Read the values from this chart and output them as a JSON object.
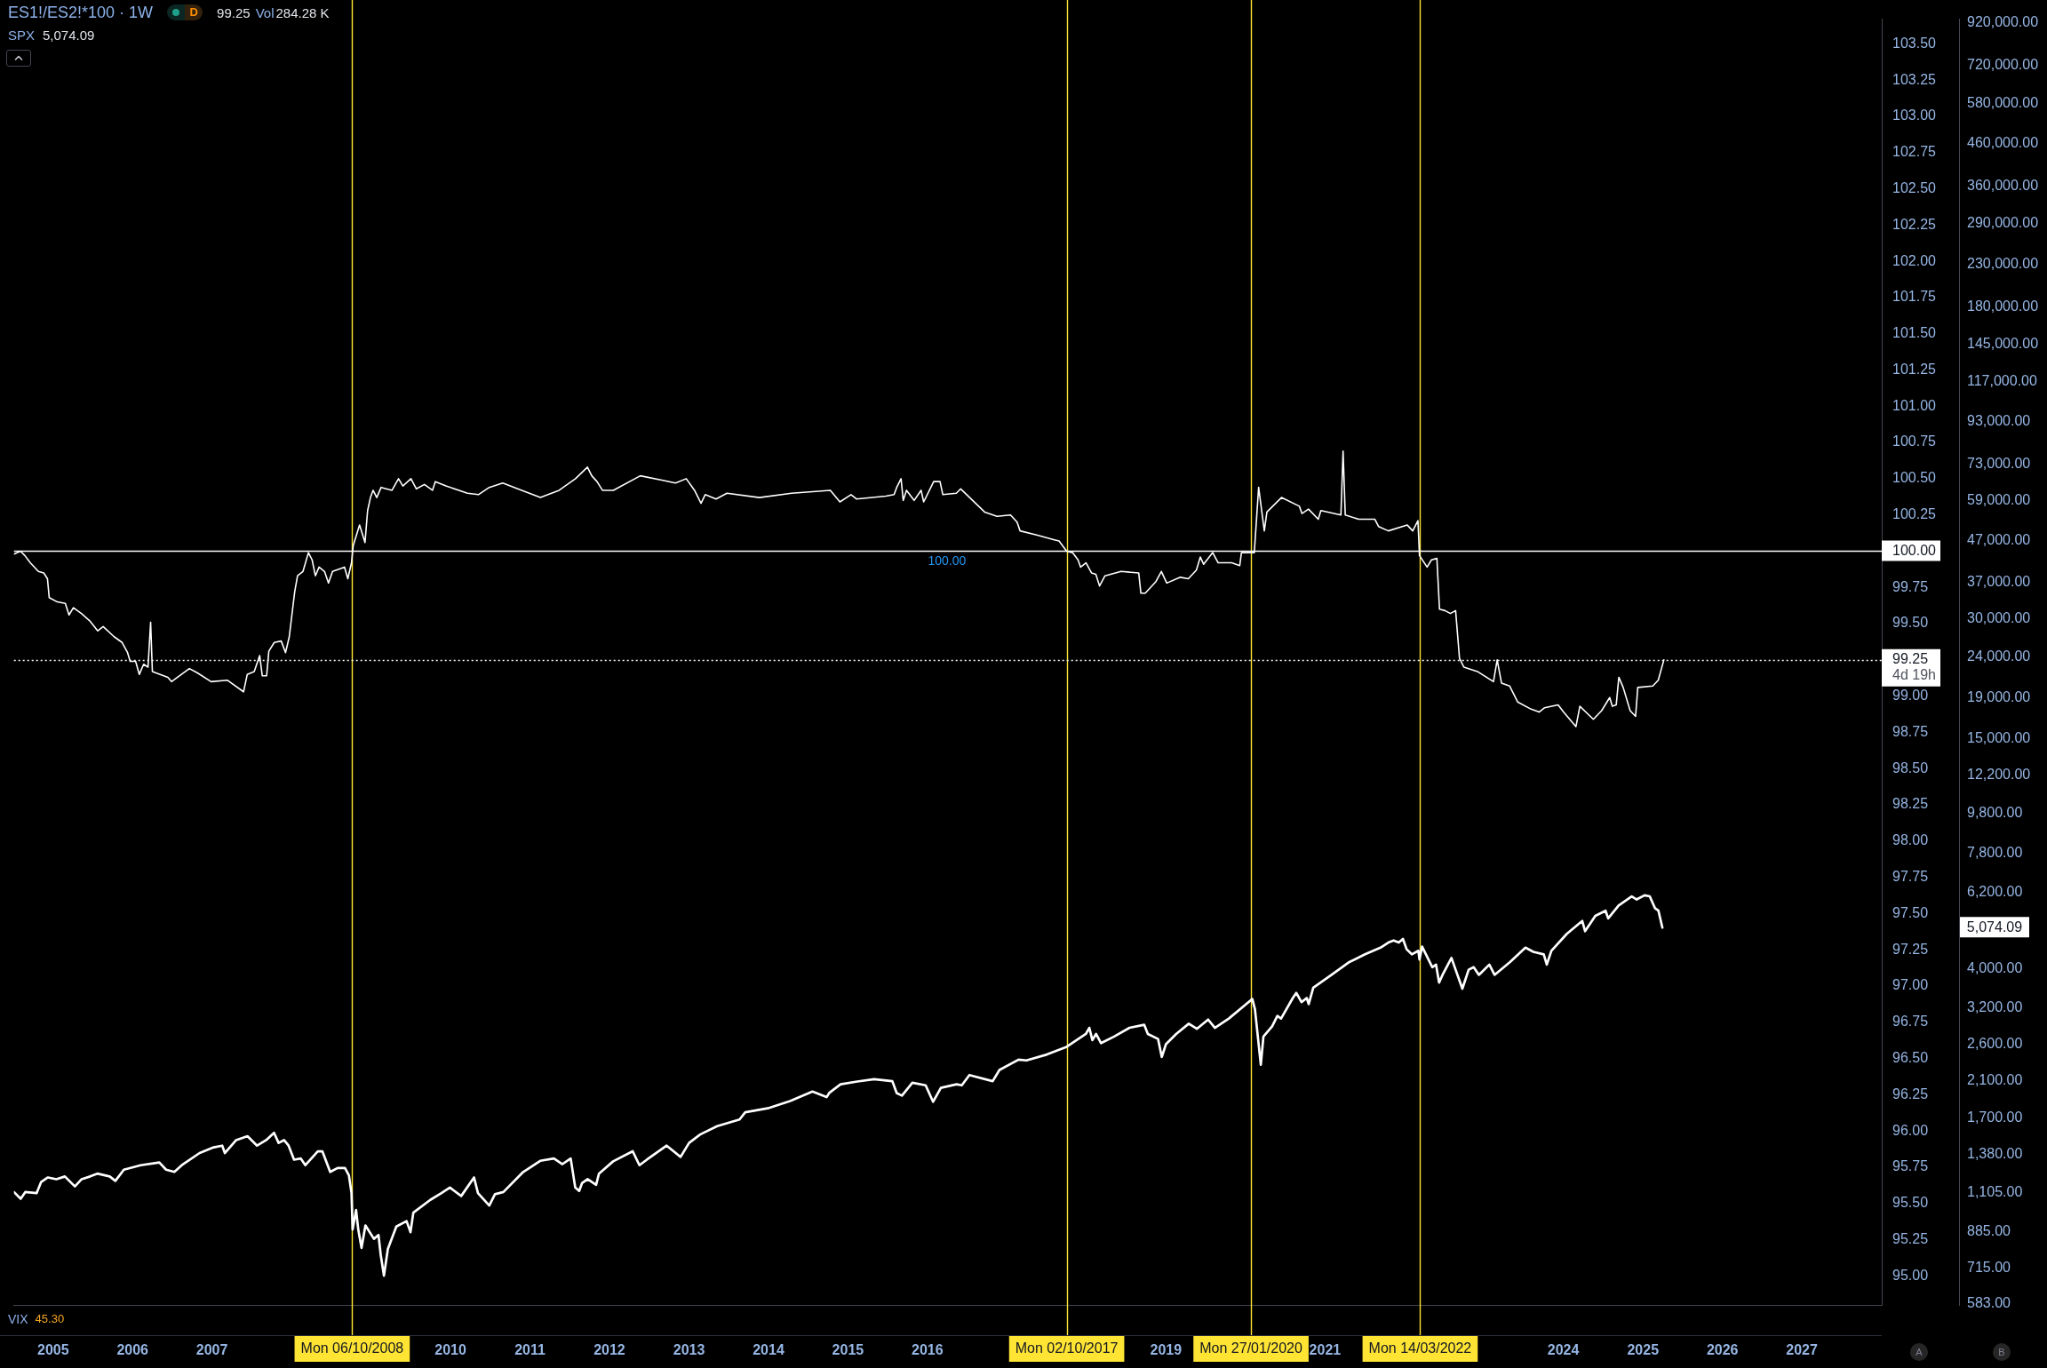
{
  "chart_data": {
    "type": "line",
    "title": "ES1!/ES2!*100 · 1W",
    "subtitle": "SPX",
    "xlim": [
      "2004-07-05",
      "2028-01-03"
    ],
    "xticks": [
      "2005",
      "2006",
      "2007",
      "2010",
      "2011",
      "2012",
      "2013",
      "2014",
      "2015",
      "2016",
      "2019",
      "2021",
      "2024",
      "2025",
      "2026",
      "2027"
    ],
    "ylim": [
      94.8,
      103.67
    ],
    "yticks": [
      {
        "value": 95,
        "label": "95.00"
      },
      {
        "value": 95.25,
        "label": "95.25"
      },
      {
        "value": 95.5,
        "label": "95.50"
      },
      {
        "value": 95.75,
        "label": "95.75"
      },
      {
        "value": 96,
        "label": "96.00"
      },
      {
        "value": 96.25,
        "label": "96.25"
      },
      {
        "value": 96.5,
        "label": "96.50"
      },
      {
        "value": 96.75,
        "label": "96.75"
      },
      {
        "value": 97,
        "label": "97.00"
      },
      {
        "value": 97.25,
        "label": "97.25"
      },
      {
        "value": 97.5,
        "label": "97.50"
      },
      {
        "value": 97.75,
        "label": "97.75"
      },
      {
        "value": 98,
        "label": "98.00"
      },
      {
        "value": 98.25,
        "label": "98.25"
      },
      {
        "value": 98.5,
        "label": "98.50"
      },
      {
        "value": 98.75,
        "label": "98.75"
      },
      {
        "value": 99,
        "label": "99.00"
      },
      {
        "value": 99.5,
        "label": "99.50"
      },
      {
        "value": 99.75,
        "label": "99.75"
      },
      {
        "value": 100.25,
        "label": "100.25"
      },
      {
        "value": 100.5,
        "label": "100.50"
      },
      {
        "value": 100.75,
        "label": "100.75"
      },
      {
        "value": 101,
        "label": "101.00"
      },
      {
        "value": 101.25,
        "label": "101.25"
      },
      {
        "value": 101.5,
        "label": "101.50"
      },
      {
        "value": 101.75,
        "label": "101.75"
      },
      {
        "value": 102,
        "label": "102.00"
      },
      {
        "value": 102.25,
        "label": "102.25"
      },
      {
        "value": 102.5,
        "label": "102.50"
      },
      {
        "value": 102.75,
        "label": "102.75"
      },
      {
        "value": 103,
        "label": "103.00"
      },
      {
        "value": 103.25,
        "label": "103.25"
      },
      {
        "value": 103.5,
        "label": "103.50"
      }
    ],
    "y2lim": [
      580,
      941000
    ],
    "y2ticks": [
      {
        "value": 583,
        "label": "583.00"
      },
      {
        "value": 715,
        "label": "715.00"
      },
      {
        "value": 885,
        "label": "885.00"
      },
      {
        "value": 1105,
        "label": "1,105.00"
      },
      {
        "value": 1380,
        "label": "1,380.00"
      },
      {
        "value": 1700,
        "label": "1,700.00"
      },
      {
        "value": 2100,
        "label": "2,100.00"
      },
      {
        "value": 2600,
        "label": "2,600.00"
      },
      {
        "value": 3200,
        "label": "3,200.00"
      },
      {
        "value": 4000,
        "label": "4,000.00"
      },
      {
        "value": 6200,
        "label": "6,200.00"
      },
      {
        "value": 7800,
        "label": "7,800.00"
      },
      {
        "value": 9800,
        "label": "9,800.00"
      },
      {
        "value": 12200,
        "label": "12,200.00"
      },
      {
        "value": 15000,
        "label": "15,000.00"
      },
      {
        "value": 19000,
        "label": "19,000.00"
      },
      {
        "value": 24000,
        "label": "24,000.00"
      },
      {
        "value": 30000,
        "label": "30,000.00"
      },
      {
        "value": 37000,
        "label": "37,000.00"
      },
      {
        "value": 47000,
        "label": "47,000.00"
      },
      {
        "value": 59000,
        "label": "59,000.00"
      },
      {
        "value": 73000,
        "label": "73,000.00"
      },
      {
        "value": 93000,
        "label": "93,000.00"
      },
      {
        "value": 117000,
        "label": "117,000.00"
      },
      {
        "value": 145000,
        "label": "145,000.00"
      },
      {
        "value": 180000,
        "label": "180,000.00"
      },
      {
        "value": 230000,
        "label": "230,000.00"
      },
      {
        "value": 290000,
        "label": "290,000.00"
      },
      {
        "value": 360000,
        "label": "360,000.00"
      },
      {
        "value": 460000,
        "label": "460,000.00"
      },
      {
        "value": 580000,
        "label": "580,000.00"
      },
      {
        "value": 720000,
        "label": "720,000.00"
      },
      {
        "value": 920000,
        "label": "920,000.00"
      }
    ],
    "log": "y2",
    "series": [
      {
        "color": "#ffffff",
        "x": [
          "2004-07-05",
          "2004-08-04",
          "2004-08-24",
          "2004-09-18",
          "2004-10-25",
          "2004-11-19",
          "2004-12-06",
          "2004-12-14",
          "2005-01-20",
          "2005-02-26",
          "2005-03-15",
          "2005-04-04",
          "2005-05-11",
          "2005-06-18",
          "2005-07-25",
          "2005-08-19",
          "2005-10-08",
          "2005-11-14",
          "2005-12-09",
          "2005-12-21",
          "2006-01-15",
          "2006-02-01",
          "2006-02-21",
          "2006-03-13",
          "2006-03-25",
          "2006-04-02",
          "2006-06-12",
          "2006-06-29",
          "2006-09-19",
          "2006-10-26",
          "2006-12-28",
          "2007-03-12",
          "2007-05-26",
          "2007-06-12",
          "2007-07-14",
          "2007-08-08",
          "2007-08-20",
          "2007-09-09",
          "2007-09-19",
          "2007-10-14",
          "2007-11-15",
          "2007-12-05",
          "2007-12-22",
          "2008-01-16",
          "2008-01-29",
          "2008-02-23",
          "2008-03-19",
          "2008-04-05",
          "2008-04-20",
          "2008-05-07",
          "2008-06-01",
          "2008-06-19",
          "2008-07-08",
          "2008-09-01",
          "2008-09-16",
          "2008-10-03",
          "2008-10-11",
          "2008-11-09",
          "2008-12-04",
          "2008-12-16",
          "2008-12-29",
          "2009-01-10",
          "2009-01-27",
          "2009-02-16",
          "2009-04-07",
          "2009-05-07",
          "2009-05-27",
          "2009-07-03",
          "2009-07-28",
          "2009-09-03",
          "2009-10-10",
          "2009-10-23",
          "2009-12-11",
          "2010-03-20",
          "2010-05-09",
          "2010-06-28",
          "2010-08-29",
          "2010-11-24",
          "2011-02-18",
          "2011-05-15",
          "2011-07-29",
          "2011-09-22",
          "2011-10-12",
          "2011-11-05",
          "2011-11-30",
          "2012-01-19",
          "2012-05-22",
          "2012-08-29",
          "2012-10-30",
          "2012-12-19",
          "2013-01-26",
          "2013-02-25",
          "2013-03-16",
          "2013-05-05",
          "2013-06-24",
          "2013-11-20",
          "2014-04-17",
          "2014-10-12",
          "2014-11-25",
          "2015-01-15",
          "2015-02-09",
          "2015-06-24",
          "2015-08-01",
          "2015-08-13",
          "2015-09-02",
          "2015-09-12",
          "2015-09-27",
          "2015-11-01",
          "2015-12-03",
          "2015-12-15",
          "2016-01-30",
          "2016-02-28",
          "2016-03-12",
          "2016-05-13",
          "2016-06-02",
          "2016-07-27",
          "2016-09-20",
          "2016-11-16",
          "2017-01-17",
          "2017-02-16",
          "2017-03-02",
          "2017-05-21",
          "2017-08-03",
          "2017-08-28",
          "2017-10-02",
          "2017-10-29",
          "2017-11-23",
          "2017-12-05",
          "2017-12-30",
          "2018-01-24",
          "2018-02-13",
          "2018-03-02",
          "2018-03-27",
          "2018-06-09",
          "2018-08-29",
          "2018-09-08",
          "2018-09-28",
          "2018-11-16",
          "2018-12-11",
          "2019-01-05",
          "2019-03-08",
          "2019-04-14",
          "2019-05-21",
          "2019-06-08",
          "2019-06-23",
          "2019-08-04",
          "2019-08-29",
          "2019-10-30",
          "2019-12-06",
          "2019-12-14",
          "2020-02-11",
          "2020-03-02",
          "2020-03-28",
          "2020-04-09",
          "2020-06-15",
          "2020-09-05",
          "2020-09-17",
          "2020-10-17",
          "2020-12-01",
          "2020-12-13",
          "2021-03-15",
          "2021-03-25",
          "2021-04-04",
          "2021-06-05",
          "2021-08-18",
          "2021-09-04",
          "2021-10-19",
          "2022-01-14",
          "2022-02-08",
          "2022-03-04",
          "2022-03-11",
          "2022-04-15",
          "2022-05-05",
          "2022-05-30",
          "2022-06-11",
          "2022-07-06",
          "2022-07-31",
          "2022-08-24",
          "2022-09-11",
          "2022-10-01",
          "2022-12-02",
          "2023-02-14",
          "2023-03-03",
          "2023-03-23",
          "2023-04-29",
          "2023-06-05",
          "2023-08-06",
          "2023-09-12",
          "2023-10-07",
          "2023-12-08",
          "2024-01-02",
          "2024-02-28",
          "2024-03-17",
          "2024-05-18",
          "2024-06-25",
          "2024-08-01",
          "2024-08-13",
          "2024-08-31",
          "2024-09-12",
          "2024-10-02",
          "2024-11-03",
          "2024-11-28",
          "2024-12-08",
          "2025-02-15",
          "2025-03-12",
          "2025-04-07"
        ],
        "values": [
          99.98,
          100.0,
          99.97,
          99.92,
          99.86,
          99.85,
          99.81,
          99.68,
          99.65,
          99.64,
          99.56,
          99.61,
          99.57,
          99.52,
          99.45,
          99.48,
          99.41,
          99.37,
          99.3,
          99.24,
          99.24,
          99.15,
          99.22,
          99.2,
          99.51,
          99.17,
          99.13,
          99.1,
          99.19,
          99.16,
          99.1,
          99.11,
          99.03,
          99.15,
          99.17,
          99.28,
          99.14,
          99.14,
          99.31,
          99.37,
          99.38,
          99.3,
          99.41,
          99.72,
          99.83,
          99.86,
          99.99,
          99.94,
          99.83,
          99.89,
          99.86,
          99.78,
          99.86,
          99.89,
          99.81,
          99.92,
          100.04,
          100.18,
          100.06,
          100.28,
          100.37,
          100.42,
          100.37,
          100.44,
          100.42,
          100.5,
          100.45,
          100.5,
          100.43,
          100.46,
          100.42,
          100.48,
          100.45,
          100.4,
          100.39,
          100.44,
          100.47,
          100.42,
          100.37,
          100.42,
          100.5,
          100.58,
          100.52,
          100.48,
          100.42,
          100.42,
          100.52,
          100.49,
          100.47,
          100.5,
          100.42,
          100.33,
          100.39,
          100.36,
          100.4,
          100.37,
          100.4,
          100.42,
          100.34,
          100.39,
          100.36,
          100.38,
          100.39,
          100.44,
          100.5,
          100.35,
          100.42,
          100.35,
          100.42,
          100.34,
          100.48,
          100.48,
          100.39,
          100.4,
          100.43,
          100.35,
          100.27,
          100.24,
          100.25,
          100.2,
          100.14,
          100.11,
          100.08,
          100.07,
          100.0,
          99.99,
          99.94,
          99.89,
          99.92,
          99.85,
          99.84,
          99.76,
          99.83,
          99.86,
          99.85,
          99.71,
          99.71,
          99.79,
          99.86,
          99.78,
          99.82,
          99.81,
          99.87,
          99.96,
          99.91,
          99.99,
          99.92,
          99.92,
          99.9,
          99.99,
          99.99,
          100.44,
          100.14,
          100.27,
          100.37,
          100.31,
          100.26,
          100.29,
          100.22,
          100.28,
          100.25,
          100.69,
          100.25,
          100.22,
          100.22,
          100.17,
          100.14,
          100.18,
          100.14,
          100.21,
          99.97,
          99.89,
          99.94,
          99.95,
          99.6,
          99.59,
          99.57,
          99.59,
          99.26,
          99.2,
          99.17,
          99.1,
          99.25,
          99.09,
          99.07,
          98.96,
          98.91,
          98.89,
          98.92,
          98.94,
          98.89,
          98.79,
          98.93,
          98.84,
          98.9,
          98.99,
          98.93,
          98.94,
          99.13,
          99.06,
          98.9,
          98.86,
          99.06,
          99.07,
          99.11,
          99.25
        ]
      },
      {
        "color": "#ffffff",
        "axis": "y2",
        "x": [
          "2004-07-05",
          "2004-08-05",
          "2004-08-26",
          "2004-10-17",
          "2004-11-07",
          "2004-12-08",
          "2005-01-16",
          "2005-02-24",
          "2005-04-11",
          "2005-05-12",
          "2005-06-20",
          "2005-07-23",
          "2005-09-18",
          "2005-10-14",
          "2005-11-22",
          "2006-02-07",
          "2006-05-04",
          "2006-06-04",
          "2006-07-12",
          "2006-08-15",
          "2006-11-05",
          "2007-01-09",
          "2007-02-17",
          "2007-03-01",
          "2007-04-22",
          "2007-06-13",
          "2007-07-27",
          "2007-09-07",
          "2007-10-13",
          "2007-11-03",
          "2007-11-28",
          "2007-12-19",
          "2008-01-13",
          "2008-02-13",
          "2008-03-05",
          "2008-05-01",
          "2008-05-22",
          "2008-06-27",
          "2008-07-31",
          "2008-09-03",
          "2008-09-21",
          "2008-10-03",
          "2008-10-08",
          "2008-10-24",
          "2008-11-03",
          "2008-11-18",
          "2008-12-06",
          "2009-01-14",
          "2009-02-04",
          "2009-02-14",
          "2009-03-01",
          "2009-03-19",
          "2009-04-27",
          "2009-06-13",
          "2009-07-01",
          "2009-07-14",
          "2009-09-30",
          "2009-11-20",
          "2009-12-29",
          "2010-02-19",
          "2010-04-19",
          "2010-05-07",
          "2010-06-28",
          "2010-07-24",
          "2010-09-01",
          "2010-12-01",
          "2011-02-17",
          "2011-04-21",
          "2011-05-30",
          "2011-07-07",
          "2011-07-28",
          "2011-08-15",
          "2011-08-28",
          "2011-09-23",
          "2011-11-01",
          "2011-11-14",
          "2012-01-18",
          "2012-04-17",
          "2012-05-18",
          "2012-06-21",
          "2012-09-20",
          "2012-11-23",
          "2013-01-01",
          "2013-02-21",
          "2013-05-10",
          "2013-08-21",
          "2013-09-16",
          "2013-12-28",
          "2014-04-10",
          "2014-07-22",
          "2014-09-25",
          "2014-10-08",
          "2014-11-28",
          "2015-02-13",
          "2015-05-01",
          "2015-07-24",
          "2015-08-13",
          "2015-09-06",
          "2015-10-24",
          "2015-12-24",
          "2016-01-27",
          "2016-03-03",
          "2016-05-14",
          "2016-06-07",
          "2016-07-12",
          "2016-10-27",
          "2016-11-27",
          "2017-02-23",
          "2017-03-31",
          "2017-07-03",
          "2017-10-02",
          "2017-12-29",
          "2018-01-14",
          "2018-01-28",
          "2018-02-14",
          "2018-03-09",
          "2018-05-08",
          "2018-07-18",
          "2018-09-23",
          "2018-10-10",
          "2018-11-26",
          "2018-12-13",
          "2019-01-01",
          "2019-02-17",
          "2019-04-16",
          "2019-05-23",
          "2019-07-14",
          "2019-08-14",
          "2019-10-17",
          "2020-01-04",
          "2020-02-02",
          "2020-02-14",
          "2020-03-12",
          "2020-03-24",
          "2020-05-03",
          "2020-05-27",
          "2020-06-13",
          "2020-08-06",
          "2020-08-22",
          "2020-09-15",
          "2020-10-09",
          "2020-10-18",
          "2020-11-08",
          "2021-01-31",
          "2021-04-23",
          "2021-07-04",
          "2021-09-13",
          "2021-10-19",
          "2021-11-12",
          "2021-12-06",
          "2021-12-25",
          "2022-01-11",
          "2022-02-04",
          "2022-03-06",
          "2022-03-11",
          "2022-03-23",
          "2022-05-09",
          "2022-05-26",
          "2022-06-09",
          "2022-06-25",
          "2022-08-05",
          "2022-08-24",
          "2022-09-24",
          "2022-10-23",
          "2022-11-15",
          "2022-12-09",
          "2023-01-26",
          "2023-02-19",
          "2023-05-01",
          "2023-07-11",
          "2023-08-16",
          "2023-10-03",
          "2023-10-17",
          "2023-11-07",
          "2024-01-17",
          "2024-03-28",
          "2024-04-10",
          "2024-05-27",
          "2024-07-13",
          "2024-07-25",
          "2024-09-11",
          "2024-11-10",
          "2024-12-03",
          "2025-01-08",
          "2025-02-01",
          "2025-02-25",
          "2025-03-13",
          "2025-03-31"
        ],
        "values": [
          1110,
          1068,
          1110,
          1103,
          1176,
          1207,
          1195,
          1214,
          1146,
          1195,
          1214,
          1234,
          1214,
          1183,
          1262,
          1295,
          1316,
          1262,
          1246,
          1295,
          1389,
          1435,
          1449,
          1389,
          1496,
          1530,
          1449,
          1496,
          1560,
          1472,
          1496,
          1449,
          1337,
          1346,
          1295,
          1403,
          1403,
          1246,
          1274,
          1274,
          1222,
          1103,
          895,
          1001,
          895,
          805,
          916,
          848,
          867,
          775,
          686,
          800,
          910,
          939,
          881,
          986,
          1061,
          1103,
          1139,
          1085,
          1207,
          1103,
          1027,
          1096,
          1110,
          1246,
          1328,
          1346,
          1303,
          1346,
          1139,
          1117,
          1168,
          1195,
          1157,
          1234,
          1324,
          1403,
          1295,
          1337,
          1449,
          1358,
          1472,
          1545,
          1621,
          1684,
          1756,
          1796,
          1873,
          1978,
          1915,
          1965,
          2062,
          2095,
          2123,
          2099,
          1961,
          1932,
          2080,
          2050,
          1865,
          2020,
          2062,
          2050,
          2175,
          2099,
          2239,
          2376,
          2365,
          2447,
          2558,
          2754,
          2853,
          2658,
          2754,
          2612,
          2713,
          2853,
          2904,
          2754,
          2675,
          2412,
          2596,
          2754,
          2922,
          2836,
          2992,
          2853,
          3009,
          3268,
          3366,
          3174,
          2307,
          2713,
          2879,
          3054,
          3009,
          3386,
          3487,
          3307,
          3386,
          3268,
          3593,
          3868,
          4165,
          4353,
          4523,
          4659,
          4714,
          4659,
          4756,
          4482,
          4353,
          4443,
          4227,
          4549,
          4043,
          4104,
          3701,
          3868,
          4264,
          3984,
          3572,
          3984,
          4043,
          3868,
          4104,
          3868,
          4165,
          4523,
          4417,
          4353,
          4104,
          4443,
          4898,
          5274,
          4971,
          5431,
          5594,
          5351,
          5762,
          6075,
          5968,
          6111,
          6075,
          5677,
          5594,
          5074.09
        ]
      }
    ],
    "ref_lines": [
      {
        "axis": "x",
        "value": "2008-10-06",
        "label": "Mon 06/10/2008",
        "color": "#ffe433"
      },
      {
        "axis": "x",
        "value": "2017-10-02",
        "label": "Mon 02/10/2017",
        "color": "#ffe433"
      },
      {
        "axis": "x",
        "value": "2020-01-27",
        "label": "Mon 27/01/2020",
        "color": "#ffe433"
      },
      {
        "axis": "x",
        "value": "2022-03-14",
        "label": "Mon 14/03/2022",
        "color": "#ffe433"
      },
      {
        "axis": "y",
        "value": 100,
        "label": "100.00",
        "color": "#ffffff"
      },
      {
        "axis": "y",
        "value": 99.25,
        "label": "99.25",
        "color": "#ffffff",
        "line_style": "dotted"
      }
    ],
    "annotations": [
      "D",
      "99.25",
      "Vol",
      "284.28 K",
      "5,074.09",
      "VIX",
      "45.30",
      "4d 19h",
      "5,074.09",
      {
        "text": "100.00",
        "x": "2016-03-31",
        "y": 100
      },
      "A",
      "B"
    ]
  }
}
